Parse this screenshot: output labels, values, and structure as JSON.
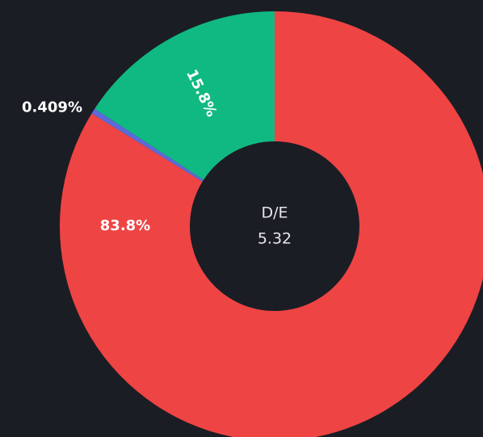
{
  "chart_data": {
    "type": "donut",
    "categories": [
      null,
      null,
      null
    ],
    "values": [
      83.8,
      0.409,
      15.8
    ],
    "value_labels": [
      "83.8%",
      "0.409%",
      "15.8%"
    ],
    "colors": [
      "#ef4444",
      "#5b6ad8",
      "#10b981"
    ],
    "center_label": "D/E",
    "center_value": 5.32
  }
}
